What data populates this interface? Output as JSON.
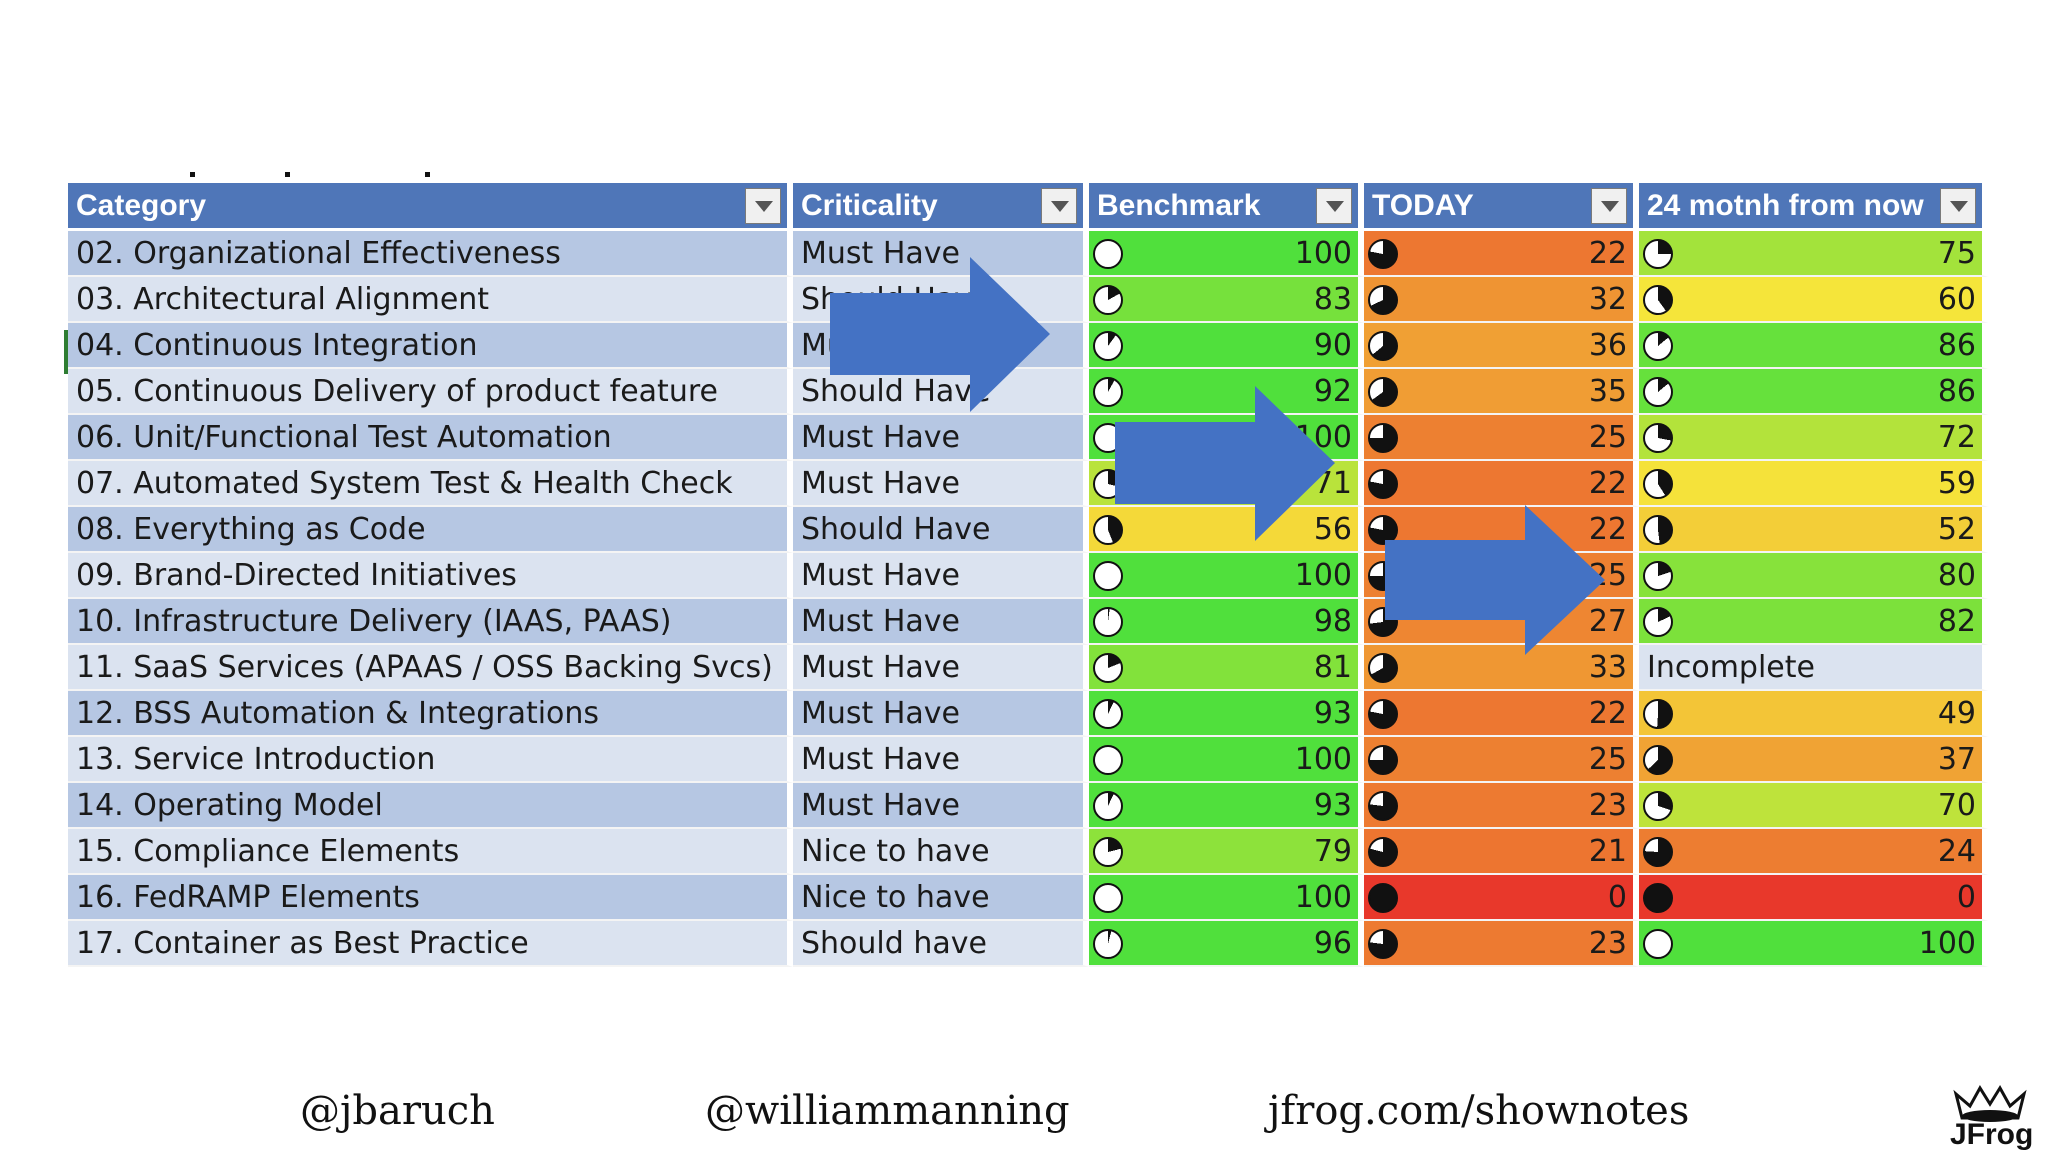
{
  "table": {
    "headers": [
      "Category",
      "Criticality",
      "Benchmark",
      "TODAY",
      "24 motnh from now"
    ],
    "rows": [
      {
        "category": "02.  Organizational Effectiveness",
        "criticality": "Must Have",
        "benchmark": "100",
        "today": "22",
        "future": "75"
      },
      {
        "category": "03.  Architectural Alignment",
        "criticality": "Should Have",
        "benchmark": "83",
        "today": "32",
        "future": "60"
      },
      {
        "category": "04.  Continuous Integration",
        "criticality": "Must Have",
        "benchmark": "90",
        "today": "36",
        "future": "86"
      },
      {
        "category": "05.  Continuous Delivery of product feature",
        "criticality": "Should Have",
        "benchmark": "92",
        "today": "35",
        "future": "86"
      },
      {
        "category": "06.  Unit/Functional Test Automation",
        "criticality": "Must Have",
        "benchmark": "100",
        "today": "25",
        "future": "72"
      },
      {
        "category": "07.  Automated System Test & Health Check",
        "criticality": "Must Have",
        "benchmark": "71",
        "today": "22",
        "future": "59"
      },
      {
        "category": "08.  Everything as Code",
        "criticality": "Should Have",
        "benchmark": "56",
        "today": "22",
        "future": "52"
      },
      {
        "category": "09.  Brand-Directed Initiatives",
        "criticality": "Must Have",
        "benchmark": "100",
        "today": "25",
        "future": "80"
      },
      {
        "category": "10.  Infrastructure Delivery  (IAAS, PAAS)",
        "criticality": "Must Have",
        "benchmark": "98",
        "today": "27",
        "future": "82"
      },
      {
        "category": "11.  SaaS Services (APAAS / OSS Backing Svcs)",
        "criticality": "Must Have",
        "benchmark": "81",
        "today": "33",
        "future": "Incomplete"
      },
      {
        "category": "12.  BSS Automation & Integrations",
        "criticality": "Must Have",
        "benchmark": "93",
        "today": "22",
        "future": "49"
      },
      {
        "category": "13.  Service Introduction",
        "criticality": "Must Have",
        "benchmark": "100",
        "today": "25",
        "future": "37"
      },
      {
        "category": "14.  Operating Model",
        "criticality": "Must Have",
        "benchmark": "93",
        "today": "23",
        "future": "70"
      },
      {
        "category": "15.  Compliance Elements",
        "criticality": "Nice to have",
        "benchmark": "79",
        "today": "21",
        "future": "24"
      },
      {
        "category": "16.  FedRAMP Elements",
        "criticality": "Nice to have",
        "benchmark": "100",
        "today": "0",
        "future": "0"
      },
      {
        "category": "17.  Container as Best Practice",
        "criticality": "Should have",
        "benchmark": "96",
        "today": "23",
        "future": "100"
      }
    ]
  },
  "footer": {
    "handle1": "@jbaruch",
    "handle2": "@williammanning",
    "link": "jfrog.com/shownotes",
    "logo_text": "JFrog"
  },
  "colors": {
    "header": "#4f76b8",
    "arrow": "#4472c4",
    "scale_low": "#e8382b",
    "scale_mid": "#f5e53a",
    "scale_high": "#50e03c"
  },
  "icons": {
    "dropdown": "dropdown-arrow-icon",
    "harvey_ball": "harvey-ball-icon",
    "arrow": "right-arrow-icon"
  }
}
